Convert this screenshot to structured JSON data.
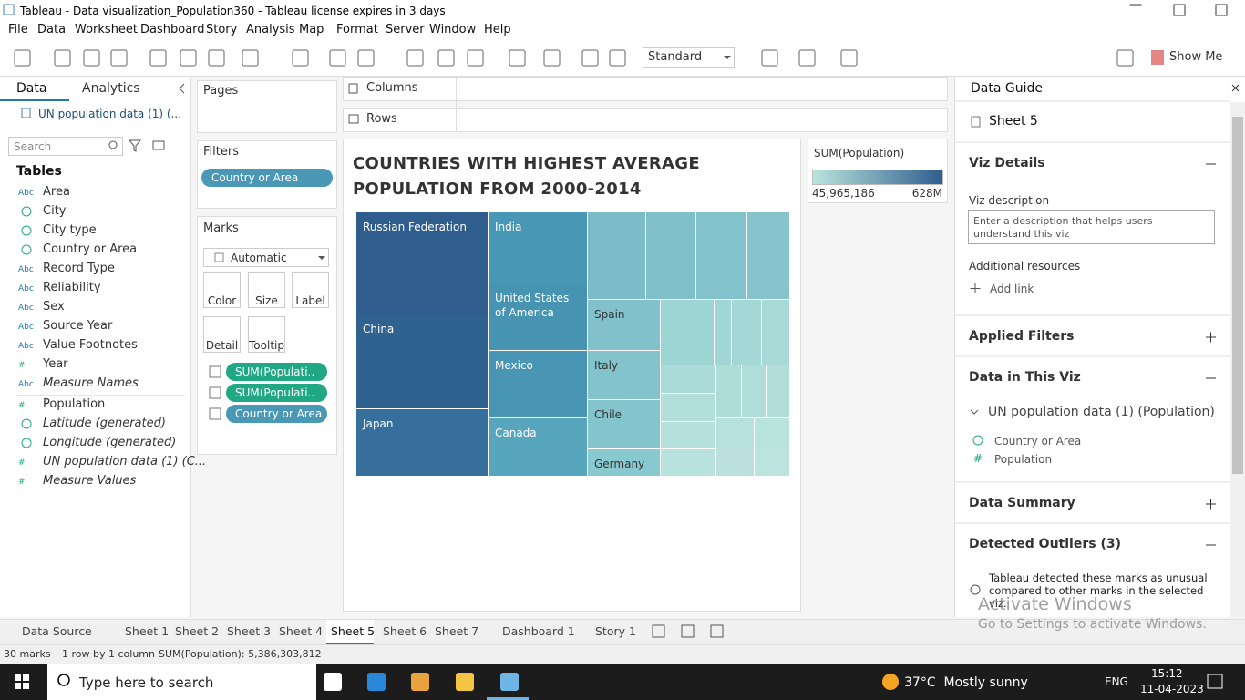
{
  "window": {
    "title": "Tableau - Data visualization_Population360 - Tableau license expires in 3 days"
  },
  "menu": [
    "File",
    "Data",
    "Worksheet",
    "Dashboard",
    "Story",
    "Analysis",
    "Map",
    "Format",
    "Server",
    "Window",
    "Help"
  ],
  "toolbar": {
    "fit": "Standard",
    "show_me": "Show Me"
  },
  "data_pane": {
    "tabs": [
      "Data",
      "Analytics"
    ],
    "source": "UN population data (1) (...",
    "search": "Search",
    "tables_heading": "Tables",
    "dimensions": [
      {
        "icon": "Abc",
        "name": "Area"
      },
      {
        "geo": true,
        "name": "City"
      },
      {
        "geo": true,
        "name": "City type"
      },
      {
        "geo": true,
        "name": "Country or Area"
      },
      {
        "icon": "Abc",
        "name": "Record Type"
      },
      {
        "icon": "Abc",
        "name": "Reliability"
      },
      {
        "icon": "Abc",
        "name": "Sex"
      },
      {
        "icon": "Abc",
        "name": "Source Year"
      },
      {
        "icon": "Abc",
        "name": "Value Footnotes"
      },
      {
        "icon": "#",
        "name": "Year"
      },
      {
        "icon": "Abc",
        "name": "Measure Names",
        "italic": true
      }
    ],
    "measures": [
      {
        "icon": "#",
        "name": "Population"
      },
      {
        "geo": true,
        "name": "Latitude (generated)",
        "italic": true
      },
      {
        "geo": true,
        "name": "Longitude (generated)",
        "italic": true
      },
      {
        "icon": "#",
        "name": "UN population data (1) (C...",
        "italic": true
      },
      {
        "icon": "#",
        "name": "Measure Values",
        "italic": true
      }
    ]
  },
  "cards": {
    "pages": "Pages",
    "filters": "Filters",
    "filter_pill": "Country or Area",
    "marks": "Marks",
    "mark_type": "Automatic",
    "mark_buttons": [
      "Color",
      "Size",
      "Label",
      "Detail",
      "Tooltip"
    ],
    "mark_pills": [
      {
        "text": "SUM(Populati..",
        "color": "#1fa883"
      },
      {
        "text": "SUM(Populati..",
        "color": "#1fa883"
      },
      {
        "text": "Country or Area",
        "color": "#4a98b5"
      }
    ]
  },
  "shelves": {
    "columns": "Columns",
    "rows": "Rows"
  },
  "viz": {
    "title": "COUNTRIES WITH HIGHEST AVERAGE POPULATION FROM 2000-2014",
    "tiles": [
      {
        "label": "Russian Federation",
        "color": "#2f5e8e"
      },
      {
        "label": "China",
        "color": "#30628f"
      },
      {
        "label": "Japan",
        "color": "#366f9b"
      },
      {
        "label": "India",
        "color": "#4898b5"
      },
      {
        "label": "United States of America",
        "color": "#4694b2"
      },
      {
        "label": "Mexico",
        "color": "#4896b3"
      },
      {
        "label": "Canada",
        "color": "#58a5be"
      },
      {
        "label": "Spain",
        "color": "#80c1cb"
      },
      {
        "label": "Italy",
        "color": "#82c3cc"
      },
      {
        "label": "Chile",
        "color": "#84c4cd"
      },
      {
        "label": "Germany",
        "color": "#88c8cf"
      }
    ],
    "legend": {
      "title": "SUM(Population)",
      "min": "45,965,186",
      "max": "628M",
      "colors": [
        "#b9e4de",
        "#2f5e8e"
      ]
    }
  },
  "guide": {
    "title": "Data Guide",
    "sheet": "Sheet 5",
    "viz_details": "Viz Details",
    "viz_description": "Viz description",
    "placeholder": "Enter a description that helps users understand this viz",
    "resources": "Additional resources",
    "add_link": "Add link",
    "applied_filters": "Applied Filters",
    "data_in_viz": "Data in This Viz",
    "source": "UN population data (1) (Population)",
    "field_geo": "Country or Area",
    "field_measure": "Population",
    "measure_icon": "#",
    "data_summary": "Data Summary",
    "outliers": "Detected Outliers (3)",
    "outliers_text": "Tableau detected these marks as unusual compared to other marks in the selected viz."
  },
  "watermark": {
    "line1": "Activate Windows",
    "line2": "Go to Settings to activate Windows."
  },
  "tabs": {
    "items": [
      "Data Source",
      "Sheet 1",
      "Sheet 2",
      "Sheet 3",
      "Sheet 4",
      "Sheet 5",
      "Sheet 6",
      "Sheet 7",
      "Dashboard 1",
      "Story 1"
    ],
    "active": 5
  },
  "status": {
    "marks": "30 marks",
    "layout": "1 row by 1 column",
    "sum": "SUM(Population): 5,386,303,812"
  },
  "taskbar": {
    "search": "Type here to search",
    "weather": "37°C  Mostly sunny",
    "lang": "ENG",
    "time": "15:12",
    "date": "11-04-2023"
  }
}
